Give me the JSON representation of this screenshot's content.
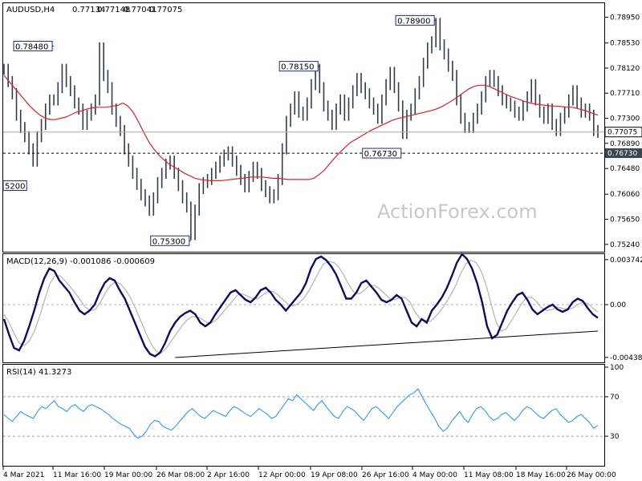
{
  "chart_data": {
    "type": "line",
    "title": "AUDUSD,H4",
    "ohlc_readout": [
      "0.77134",
      "0.77148",
      "0.77041",
      "0.77075"
    ],
    "watermark": "ActionForex.com",
    "x_tick_labels": [
      "4 Mar 2021",
      "11 Mar 16:00",
      "19 Mar 00:00",
      "26 Mar 08:00",
      "2 Apr 16:00",
      "12 Apr 00:00",
      "19 Apr 08:00",
      "26 Apr 16:00",
      "4 May 00:00",
      "11 May 08:00",
      "18 May 16:00",
      "26 May 00:00"
    ],
    "price": {
      "y_tick_labels": [
        "0.78950",
        "0.78530",
        "0.78120",
        "0.77710",
        "0.77300",
        "0.76890",
        "0.76480",
        "0.76060",
        "0.75650",
        "0.75240"
      ],
      "ylim": [
        0.7512,
        0.7918
      ],
      "current_price": 0.77075,
      "current_label": "0.77075",
      "support_level": 0.7673,
      "support_label": "0.76730",
      "close": [
        0.781,
        0.779,
        0.777,
        0.7735,
        0.7715,
        0.77,
        0.768,
        0.766,
        0.77,
        0.772,
        0.7745,
        0.776,
        0.776,
        0.778,
        0.781,
        0.779,
        0.7775,
        0.7755,
        0.7745,
        0.772,
        0.7735,
        0.7745,
        0.776,
        0.7845,
        0.78,
        0.778,
        0.7745,
        0.7725,
        0.771,
        0.768,
        0.766,
        0.764,
        0.7622,
        0.7605,
        0.7595,
        0.758,
        0.76,
        0.7625,
        0.764,
        0.7655,
        0.766,
        0.764,
        0.762,
        0.76,
        0.7585,
        0.754,
        0.758,
        0.7615,
        0.7625,
        0.763,
        0.764,
        0.765,
        0.766,
        0.767,
        0.7675,
        0.766,
        0.7645,
        0.763,
        0.7618,
        0.7635,
        0.765,
        0.764,
        0.762,
        0.761,
        0.76,
        0.7605,
        0.763,
        0.768,
        0.7725,
        0.7745,
        0.7765,
        0.774,
        0.7735,
        0.7755,
        0.7785,
        0.781,
        0.778,
        0.775,
        0.7735,
        0.772,
        0.7745,
        0.776,
        0.7735,
        0.7755,
        0.7775,
        0.7795,
        0.778,
        0.777,
        0.7755,
        0.7745,
        0.773,
        0.776,
        0.7785,
        0.7805,
        0.778,
        0.775,
        0.7705,
        0.7735,
        0.7745,
        0.777,
        0.779,
        0.782,
        0.7845,
        0.7855,
        0.7885,
        0.785,
        0.7835,
        0.7815,
        0.78,
        0.776,
        0.773,
        0.7715,
        0.7715,
        0.773,
        0.7745,
        0.7765,
        0.779,
        0.78,
        0.779,
        0.7775,
        0.776,
        0.7755,
        0.775,
        0.774,
        0.7735,
        0.775,
        0.7765,
        0.7785,
        0.776,
        0.774,
        0.773,
        0.7745,
        0.772,
        0.771,
        0.773,
        0.774,
        0.776,
        0.7775,
        0.7755,
        0.774,
        0.7745,
        0.7735,
        0.771,
        0.7707
      ],
      "ma": [
        0.78,
        0.779,
        0.778,
        0.777,
        0.776,
        0.775,
        0.7742,
        0.7735,
        0.773,
        0.7728,
        0.7728,
        0.773,
        0.7732,
        0.7736,
        0.774,
        0.7742,
        0.7745,
        0.7747,
        0.7748,
        0.7748,
        0.7748,
        0.775,
        0.7751,
        0.7755,
        0.775,
        0.774,
        0.7725,
        0.7708,
        0.7692,
        0.768,
        0.767,
        0.7662,
        0.7655,
        0.765,
        0.7645,
        0.764,
        0.7636,
        0.7632,
        0.763,
        0.7629,
        0.7628,
        0.7628,
        0.7628,
        0.7629,
        0.763,
        0.7631,
        0.7632,
        0.7633,
        0.7634,
        0.7634,
        0.7634,
        0.7633,
        0.7632,
        0.7632,
        0.7631,
        0.763,
        0.763,
        0.763,
        0.763,
        0.763,
        0.7632,
        0.7638,
        0.7645,
        0.7655,
        0.7665,
        0.7674,
        0.7682,
        0.769,
        0.7695,
        0.77,
        0.7705,
        0.771,
        0.7714,
        0.7718,
        0.7722,
        0.7726,
        0.7729,
        0.7731,
        0.7733,
        0.7735,
        0.7737,
        0.7739,
        0.7741,
        0.7743,
        0.7746,
        0.775,
        0.7755,
        0.776,
        0.7766,
        0.7772,
        0.7778,
        0.7782,
        0.7784,
        0.7784,
        0.7782,
        0.7778,
        0.7774,
        0.777,
        0.7766,
        0.7763,
        0.776,
        0.7757,
        0.7755,
        0.7753,
        0.7752,
        0.7751,
        0.775,
        0.775,
        0.7749,
        0.7748,
        0.7748,
        0.7746,
        0.7744,
        0.7741,
        0.7738,
        0.7735
      ],
      "annotations": [
        {
          "text": "0.78480",
          "x": 12,
          "y": 0.7848
        },
        {
          "text": "5200",
          "x": 0,
          "y": 0.762
        },
        {
          "text": "0.75300",
          "x": 45,
          "y": 0.753
        },
        {
          "text": "0.78150",
          "x": 76,
          "y": 0.7815
        },
        {
          "text": "0.78900",
          "x": 104,
          "y": 0.789
        },
        {
          "text": "0.76730",
          "x": 96,
          "y": 0.7673
        }
      ]
    },
    "macd": {
      "label": "MACD(12,26,9) -0.001086 -0.000609",
      "y_tick_labels": [
        "0.003742",
        "0.00",
        "-0.004389"
      ],
      "ylim": [
        -0.0048,
        0.0042
      ],
      "macd": [
        -0.0012,
        -0.0025,
        -0.0036,
        -0.0038,
        -0.003,
        -0.0018,
        -0.0005,
        0.001,
        0.0022,
        0.003,
        0.0028,
        0.002,
        0.0015,
        0.001,
        0.0002,
        -0.0005,
        -0.0008,
        -0.0005,
        0.0,
        0.001,
        0.0018,
        0.0022,
        0.002,
        0.0012,
        0.0005,
        -0.0005,
        -0.0015,
        -0.0025,
        -0.0035,
        -0.0041,
        -0.0043,
        -0.004,
        -0.0032,
        -0.0022,
        -0.0015,
        -0.001,
        -0.0007,
        -0.0005,
        -0.0008,
        -0.0015,
        -0.0018,
        -0.0015,
        -0.0008,
        -0.0002,
        0.0004,
        0.001,
        0.0012,
        0.0008,
        0.0004,
        0.0002,
        0.0006,
        0.0012,
        0.0014,
        0.001,
        0.0004,
        0.0,
        -0.0005,
        0.0,
        0.0005,
        0.001,
        0.0018,
        0.003,
        0.0038,
        0.004,
        0.0037,
        0.0032,
        0.0025,
        0.0015,
        0.0005,
        0.0005,
        0.001,
        0.0018,
        0.002,
        0.0015,
        0.001,
        0.0004,
        0.0002,
        0.0004,
        0.0008,
        0.0005,
        -0.0005,
        -0.0015,
        -0.0018,
        -0.0012,
        -0.0015,
        -0.0005,
        0.0,
        0.0006,
        0.0014,
        0.0024,
        0.0035,
        0.0042,
        0.0038,
        0.003,
        0.0018,
        0.0002,
        -0.0018,
        -0.0028,
        -0.0025,
        -0.0015,
        -0.0005,
        0.0002,
        0.0008,
        0.001,
        0.0004,
        -0.0004,
        -0.0008,
        -0.0005,
        -0.0002,
        0.0,
        -0.0004,
        -0.0006,
        -0.0004,
        0.0002,
        0.0005,
        0.0003,
        -0.0003,
        -0.0008,
        -0.0011
      ],
      "signal": [
        -0.0008,
        -0.0015,
        -0.0024,
        -0.0032,
        -0.0034,
        -0.003,
        -0.0022,
        -0.001,
        0.0004,
        0.0017,
        0.0024,
        0.0024,
        0.002,
        0.0015,
        0.001,
        0.0004,
        -0.0002,
        -0.0005,
        -0.0004,
        0.0002,
        0.001,
        0.0016,
        0.0019,
        0.0017,
        0.0012,
        0.0005,
        -0.0004,
        -0.0014,
        -0.0024,
        -0.0033,
        -0.0039,
        -0.004,
        -0.0036,
        -0.003,
        -0.0024,
        -0.0018,
        -0.0013,
        -0.001,
        -0.001,
        -0.0012,
        -0.0015,
        -0.0015,
        -0.0012,
        -0.0007,
        -0.0002,
        0.0003,
        0.0008,
        0.0009,
        0.0007,
        0.0005,
        0.0005,
        0.0008,
        0.0011,
        0.0011,
        0.0008,
        0.0004,
        0.0,
        -0.0001,
        0.0001,
        0.0005,
        0.0011,
        0.0019,
        0.0027,
        0.0034,
        0.0036,
        0.0035,
        0.0031,
        0.0024,
        0.0016,
        0.001,
        0.0009,
        0.0012,
        0.0016,
        0.0016,
        0.0013,
        0.0009,
        0.0005,
        0.0004,
        0.0006,
        0.0006,
        0.0002,
        -0.0006,
        -0.0012,
        -0.0013,
        -0.0014,
        -0.001,
        -0.0005,
        0.0001,
        0.0008,
        0.0016,
        0.0026,
        0.0034,
        0.0037,
        0.0035,
        0.0028,
        0.0016,
        0.0,
        -0.0015,
        -0.0022,
        -0.002,
        -0.0013,
        -0.0006,
        0.0001,
        0.0006,
        0.0006,
        0.0002,
        -0.0003,
        -0.0005,
        -0.0004,
        -0.0002,
        -0.0003,
        -0.0004,
        -0.0003,
        0.0,
        0.0002,
        0.0001,
        -0.0003,
        -0.0006
      ],
      "trendline": [
        [
          34,
          -0.0044
        ],
        [
          118,
          -0.0022
        ]
      ]
    },
    "rsi": {
      "label": "RSI(14) 41.3273",
      "y_tick_labels": [
        "100",
        "70",
        "30"
      ],
      "ylim": [
        0,
        100
      ],
      "levels": [
        70,
        30
      ],
      "values": [
        52,
        48,
        45,
        50,
        55,
        52,
        50,
        48,
        55,
        60,
        58,
        62,
        66,
        60,
        58,
        55,
        60,
        62,
        58,
        55,
        60,
        62,
        60,
        58,
        55,
        52,
        48,
        45,
        42,
        40,
        38,
        32,
        28,
        30,
        35,
        42,
        46,
        45,
        40,
        38,
        36,
        40,
        45,
        50,
        55,
        58,
        54,
        50,
        48,
        52,
        56,
        54,
        52,
        50,
        56,
        60,
        58,
        55,
        52,
        50,
        54,
        58,
        55,
        52,
        48,
        50,
        56,
        62,
        68,
        66,
        72,
        68,
        64,
        60,
        56,
        62,
        66,
        60,
        55,
        50,
        48,
        55,
        60,
        58,
        55,
        50,
        46,
        52,
        58,
        60,
        56,
        52,
        48,
        54,
        60,
        64,
        68,
        72,
        74,
        78,
        70,
        62,
        55,
        48,
        40,
        35,
        38,
        45,
        50,
        55,
        48,
        44,
        52,
        58,
        60,
        56,
        50,
        46,
        48,
        52,
        54,
        50,
        46,
        50,
        56,
        60,
        58,
        54,
        50,
        48,
        52,
        56,
        58,
        52,
        48,
        44,
        46,
        50,
        52,
        48,
        44,
        38,
        41
      ]
    }
  }
}
